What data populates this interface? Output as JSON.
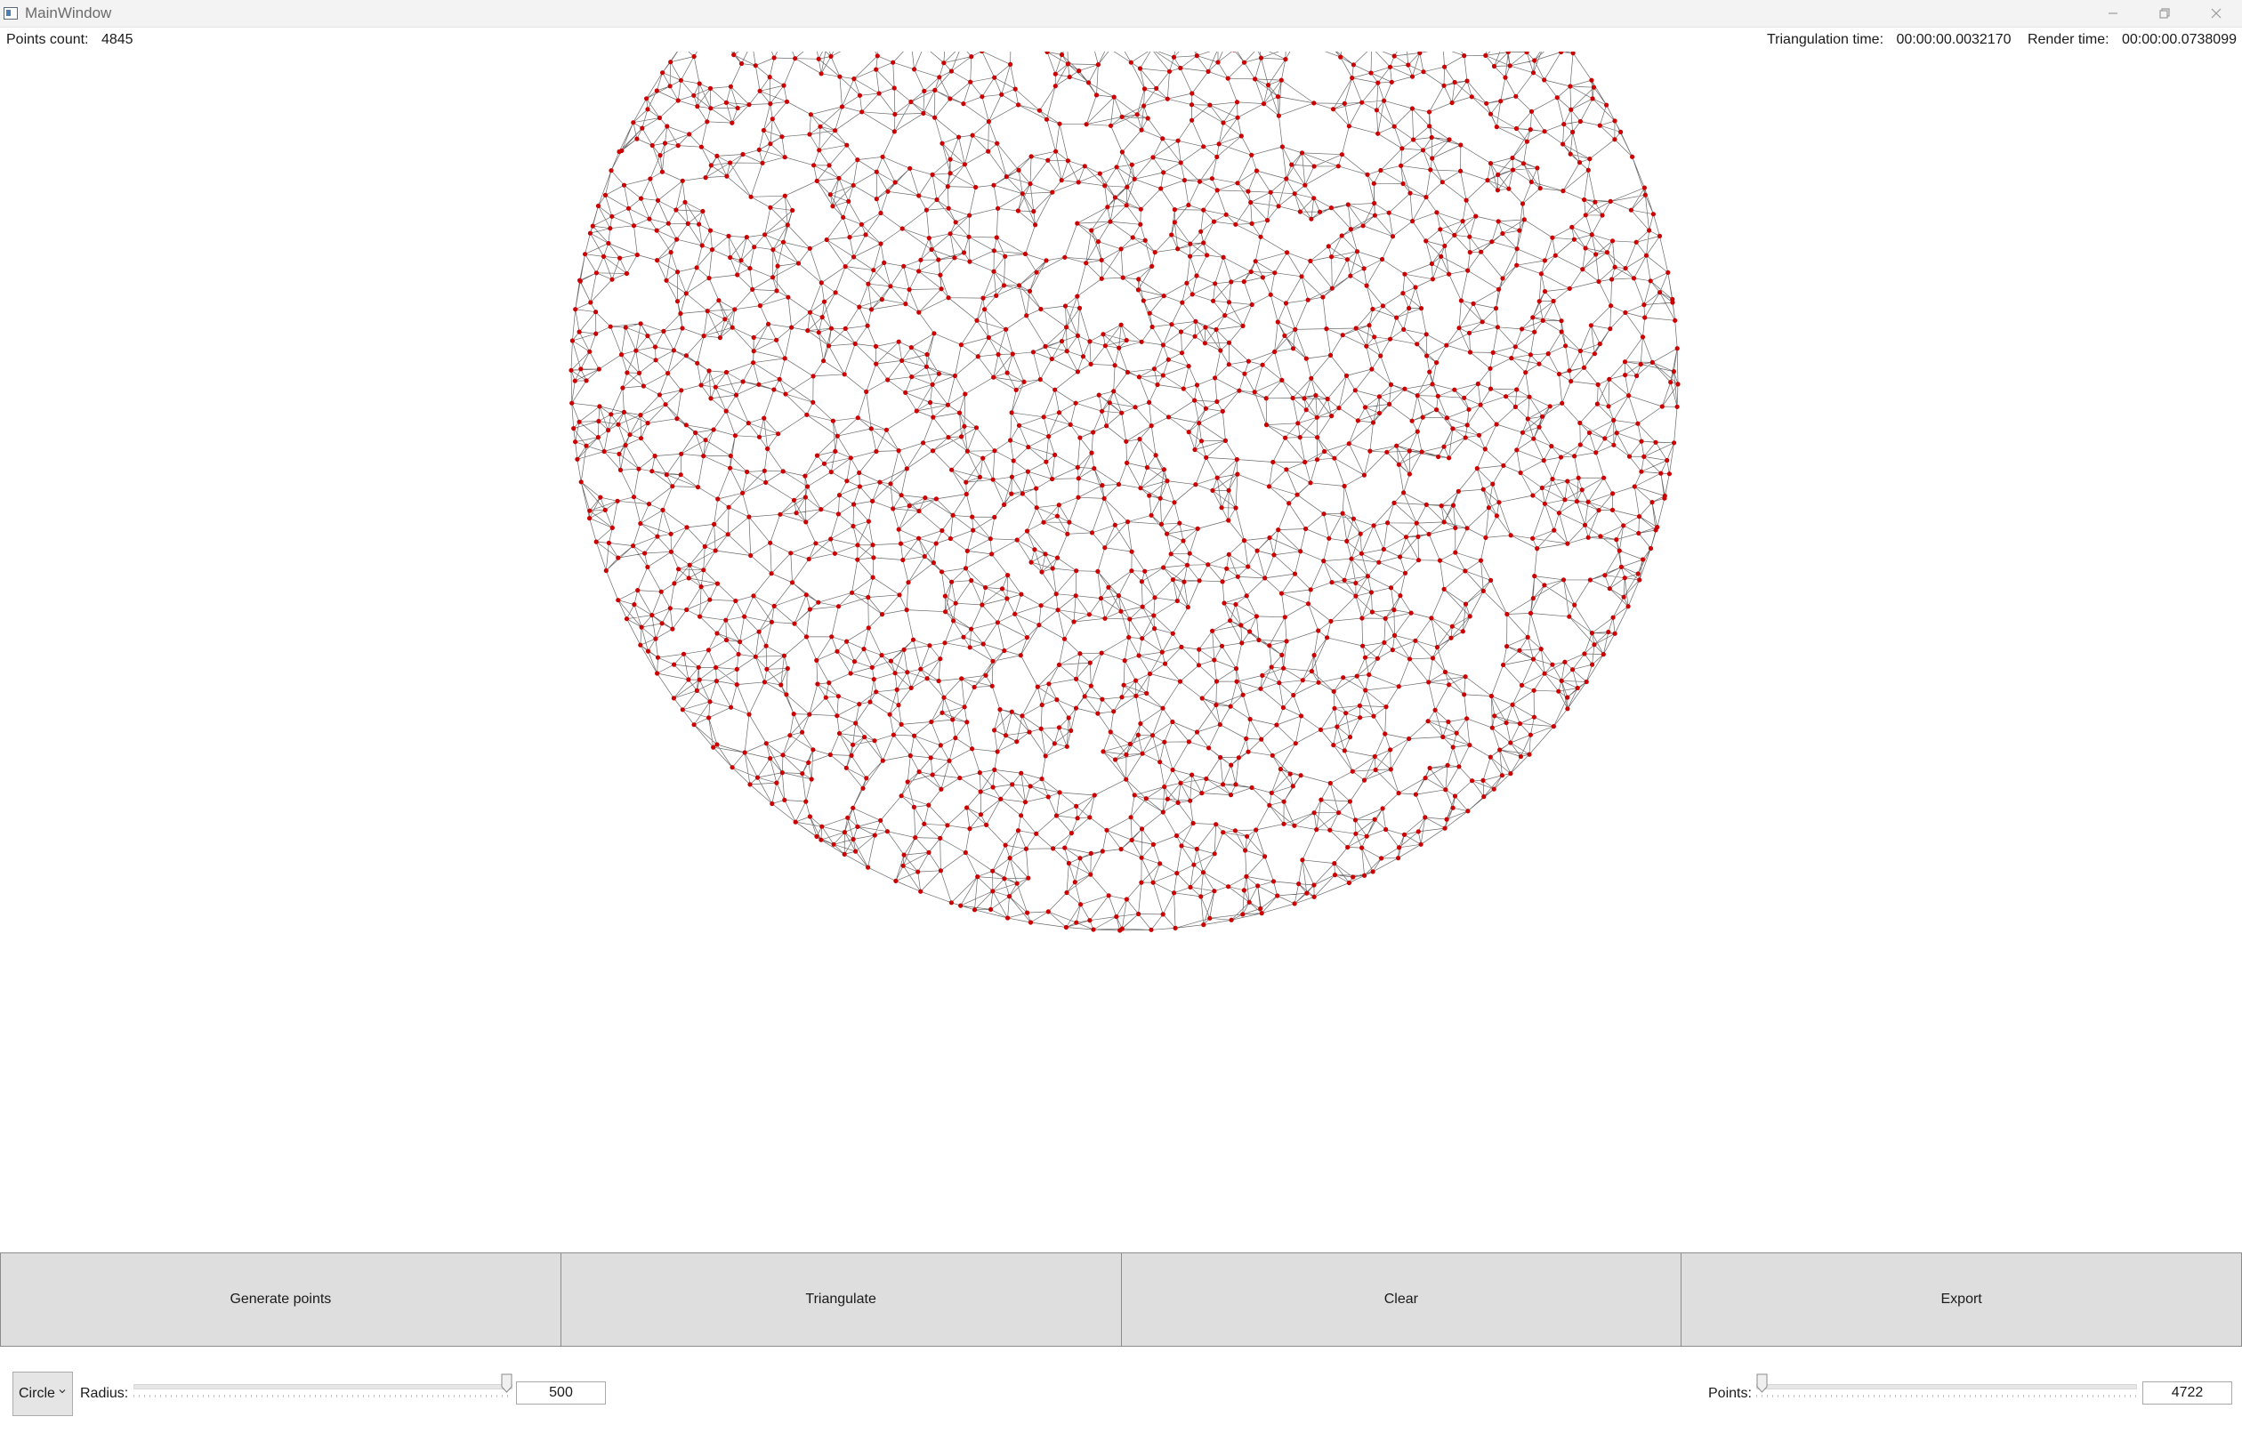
{
  "window": {
    "title": "MainWindow",
    "controls": [
      "minimize-icon",
      "restore-icon",
      "close-icon"
    ]
  },
  "info": {
    "points_count_label": "Points count:",
    "points_count_value": "4845",
    "triangulation_time_label": "Triangulation time:",
    "triangulation_time_value": "00:00:00.0032170",
    "render_time_label": "Render time:",
    "render_time_value": "00:00:00.0738099"
  },
  "canvas": {
    "shape": "circle",
    "point_color": "#cc0000",
    "edge_color": "#3a3a3a"
  },
  "buttons": {
    "generate": "Generate points",
    "triangulate": "Triangulate",
    "clear": "Clear",
    "export": "Export"
  },
  "controls": {
    "shape_selected": "Circle",
    "radius_label": "Radius:",
    "radius_value": "500",
    "radius_fraction": 1.0,
    "points_label": "Points:",
    "points_value": "4722",
    "points_fraction": 0.0
  }
}
